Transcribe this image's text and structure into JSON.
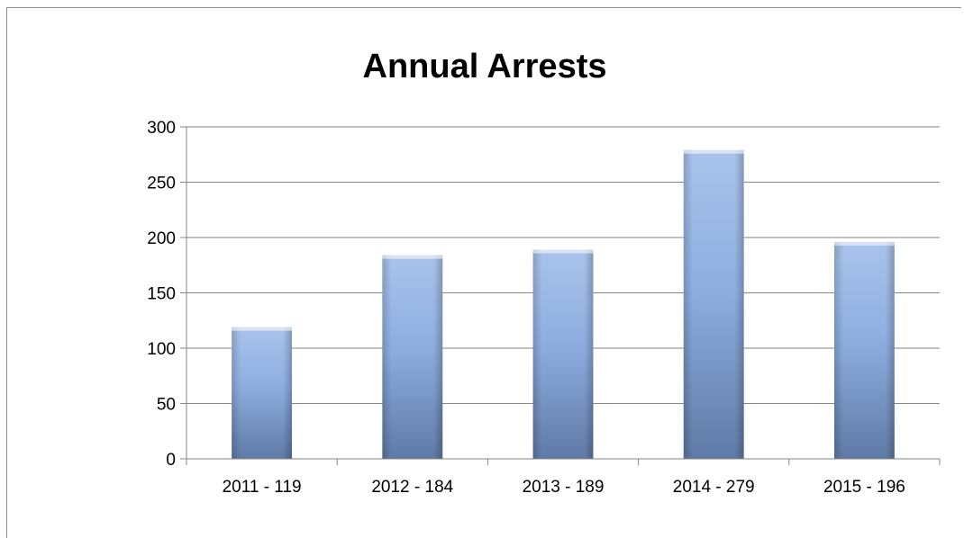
{
  "chart_data": {
    "type": "bar",
    "title": "Annual Arrests",
    "categories": [
      "2011 - 119",
      "2012 - 184",
      "2013 - 189",
      "2014 - 279",
      "2015 - 196"
    ],
    "values": [
      119,
      184,
      189,
      279,
      196
    ],
    "xlabel": "",
    "ylabel": "",
    "ylim": [
      0,
      300
    ],
    "yticks": [
      0,
      50,
      100,
      150,
      200,
      250,
      300
    ],
    "grid": true,
    "legend": "none",
    "colors": {
      "bar_light": "#a9c3eb",
      "bar_mid": "#8eaee0",
      "bar_dark": "#5f7aa6",
      "grid": "#868686"
    }
  }
}
